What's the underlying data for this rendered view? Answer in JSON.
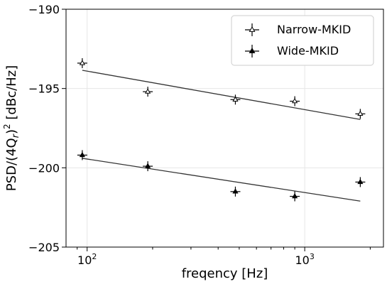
{
  "chart_data": {
    "type": "scatter",
    "title": "",
    "xlabel": "freqency [Hz]",
    "ylabel": "PSD/(4Q",
    "ylabel_sub": "r",
    "ylabel_tail": ")",
    "ylabel_sup": "2",
    "ylabel_units": " [dBc/Hz]",
    "xscale": "log",
    "xlim": [
      80,
      2300
    ],
    "ylim": [
      -205,
      -190
    ],
    "xticks": [
      {
        "value": 100,
        "base": "10",
        "exp": "2"
      },
      {
        "value": 1000,
        "base": "10",
        "exp": "3"
      }
    ],
    "yticks": [
      {
        "value": -190,
        "label": "−190"
      },
      {
        "value": -195,
        "label": "−195"
      },
      {
        "value": -200,
        "label": "−200"
      },
      {
        "value": -205,
        "label": "−205"
      }
    ],
    "grid": true,
    "legend_position": "top-right",
    "series": [
      {
        "name": "Narrow-MKID",
        "marker": "open-triangle",
        "color": "#000000",
        "points": [
          {
            "x": 95,
            "y": -193.4
          },
          {
            "x": 190,
            "y": -195.2
          },
          {
            "x": 480,
            "y": -195.7
          },
          {
            "x": 900,
            "y": -195.8
          },
          {
            "x": 1800,
            "y": -196.6
          }
        ],
        "fit": [
          {
            "x": 95,
            "y": -193.85
          },
          {
            "x": 1800,
            "y": -196.95
          }
        ]
      },
      {
        "name": "Wide-MKID",
        "marker": "filled-triangle",
        "color": "#000000",
        "points": [
          {
            "x": 95,
            "y": -199.2
          },
          {
            "x": 190,
            "y": -199.9
          },
          {
            "x": 480,
            "y": -201.5
          },
          {
            "x": 900,
            "y": -201.8
          },
          {
            "x": 1800,
            "y": -200.9
          }
        ],
        "fit": [
          {
            "x": 95,
            "y": -199.4
          },
          {
            "x": 1800,
            "y": -202.1
          }
        ]
      }
    ]
  }
}
